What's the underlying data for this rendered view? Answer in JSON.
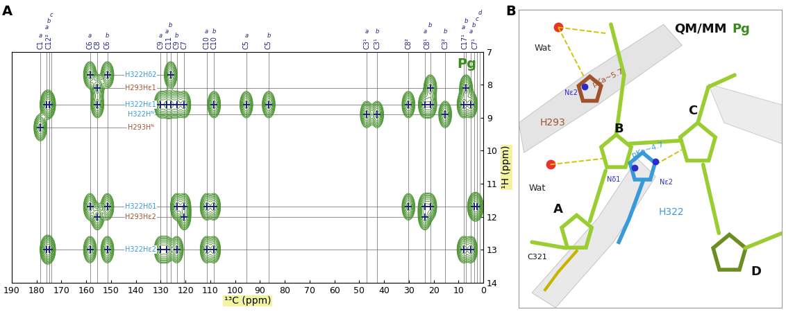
{
  "panel_labels": [
    "A",
    "B"
  ],
  "chart_data": {
    "type": "contour",
    "title": "Pg",
    "xlabel": "¹³C (ppm)",
    "ylabel": "¹H (ppm)",
    "color": "#3a8a1e",
    "marker": "plus",
    "xlim": [
      190,
      0
    ],
    "ylim": [
      14,
      7
    ],
    "xticks": [
      190,
      180,
      170,
      160,
      150,
      140,
      130,
      120,
      110,
      100,
      90,
      80,
      70,
      60,
      50,
      40,
      30,
      20,
      10,
      0
    ],
    "yticks": [
      7,
      8,
      9,
      10,
      11,
      12,
      13,
      14
    ],
    "columns": [
      {
        "label": "C1",
        "lines": [
          {
            "sup": "a",
            "x": 178.5
          }
        ]
      },
      {
        "label": "C12²",
        "lines": [
          {
            "sup": "a",
            "x": 176.0
          },
          {
            "sup": "b",
            "x": 175.0
          },
          {
            "sup": "c",
            "x": 174.0
          }
        ]
      },
      {
        "label": "C6",
        "lines": [
          {
            "sup": "a",
            "x": 158.5
          }
        ]
      },
      {
        "label": "C8",
        "lines": [
          {
            "x": 155.5
          }
        ]
      },
      {
        "label": "C6",
        "lines": [
          {
            "sup": "b",
            "x": 151.5
          }
        ]
      },
      {
        "label": "C9",
        "lines": [
          {
            "sup": "a",
            "x": 130.0
          }
        ]
      },
      {
        "label": "C11",
        "lines": [
          {
            "sup": "a",
            "x": 127.5
          },
          {
            "sup": "b",
            "x": 126.0
          }
        ]
      },
      {
        "label": "C9",
        "lines": [
          {
            "sup": "b",
            "x": 123.5
          }
        ]
      },
      {
        "label": "C7",
        "lines": [
          {
            "x": 120.5
          }
        ]
      },
      {
        "label": "C10",
        "lines": [
          {
            "sup": "a",
            "x": 111.5
          }
        ]
      },
      {
        "label": "C10",
        "lines": [
          {
            "sup": "b",
            "x": 108.5
          }
        ]
      },
      {
        "label": "C5",
        "lines": [
          {
            "sup": "a",
            "x": 95.5
          }
        ]
      },
      {
        "label": "C5",
        "lines": [
          {
            "sup": "b",
            "x": 86.5
          }
        ]
      },
      {
        "label": "C3¹",
        "lines": [
          {
            "sup": "a",
            "x": 47.0
          }
        ]
      },
      {
        "label": "C3¹",
        "lines": [
          {
            "sup": "b",
            "x": 42.8
          }
        ]
      },
      {
        "label": "C8²",
        "lines": [
          {
            "x": 30.2
          }
        ]
      },
      {
        "label": "C8¹",
        "lines": [
          {
            "sup": "a",
            "x": 23.6
          },
          {
            "sup": "b",
            "x": 21.4
          }
        ]
      },
      {
        "label": "C3²",
        "lines": [
          {
            "sup": "b",
            "x": 15.4
          }
        ]
      },
      {
        "label": "C17¹",
        "lines": [
          {
            "sup": "a",
            "x": 8.0
          },
          {
            "sup": "b",
            "x": 7.0
          }
        ]
      },
      {
        "label": "C7¹",
        "lines": [
          {
            "sup": "a",
            "x": 5.0
          },
          {
            "sup": "b",
            "x": 3.8
          },
          {
            "sup": "c",
            "x": 2.6
          },
          {
            "sup": "d",
            "x": 1.4
          }
        ]
      }
    ],
    "rows": [
      {
        "label": "H322Hδ2",
        "y": 7.7,
        "color": "#3a9ad9",
        "peaks": [
          158.5,
          151.5,
          126.0
        ]
      },
      {
        "label": "H293Hε1",
        "y": 8.1,
        "color": "#a0522d",
        "peaks": [
          155.5,
          21.4,
          7.0
        ]
      },
      {
        "label": "H322Hε1",
        "y": 8.6,
        "color": "#3a9ad9",
        "peaks": [
          176.0,
          175.0,
          155.5,
          130.0,
          127.5,
          126.0,
          123.5,
          120.5,
          108.5,
          95.5,
          86.5,
          30.2,
          23.6,
          21.4,
          8.0,
          5.0
        ]
      },
      {
        "label": "H322Hᴺ",
        "y": 8.9,
        "color": "#3a9ad9",
        "peaks": [
          47.0,
          42.8,
          15.4
        ]
      },
      {
        "label": "H293Hᴺ",
        "y": 9.3,
        "color": "#a0522d",
        "peaks": [
          178.5
        ]
      },
      {
        "label": "H322Hδ1",
        "y": 11.7,
        "color": "#3a9ad9",
        "peaks": [
          158.5,
          151.5,
          123.5,
          120.5,
          111.5,
          108.5,
          30.2,
          23.6,
          21.4,
          3.8,
          2.6
        ]
      },
      {
        "label": "H293Hε2",
        "y": 12.0,
        "color": "#a0522d",
        "peaks": [
          155.5,
          120.5,
          23.6
        ]
      },
      {
        "label": "H322Hε2",
        "y": 13.0,
        "color": "#3a9ad9",
        "peaks": [
          176.0,
          175.0,
          158.5,
          151.5,
          130.0,
          127.5,
          123.5,
          111.5,
          108.5,
          8.0,
          5.0
        ]
      }
    ]
  },
  "structure": {
    "title": "QM/MM",
    "title_tag": "Pg",
    "tag_color": "#3a8a1e",
    "labels": [
      {
        "text": "Wat",
        "color": "#222222"
      },
      {
        "text": "Wat",
        "color": "#222222"
      },
      {
        "text": "H293",
        "color": "#a0522d"
      },
      {
        "text": "H322",
        "color": "#3a9ad9"
      },
      {
        "text": "Nε2",
        "color": "#2b2bcc"
      },
      {
        "text": "Nδ1",
        "color": "#2b2bcc"
      },
      {
        "text": "Nε2",
        "color": "#2b2bcc"
      },
      {
        "text": "pKa~5.7",
        "color": "#a0522d"
      },
      {
        "text": "pKa~4.7",
        "color": "#3a9ad9"
      },
      {
        "text": "A",
        "color": "#111111"
      },
      {
        "text": "B",
        "color": "#111111"
      },
      {
        "text": "C",
        "color": "#111111"
      },
      {
        "text": "D",
        "color": "#111111"
      },
      {
        "text": "C321",
        "color": "#111111"
      }
    ]
  }
}
